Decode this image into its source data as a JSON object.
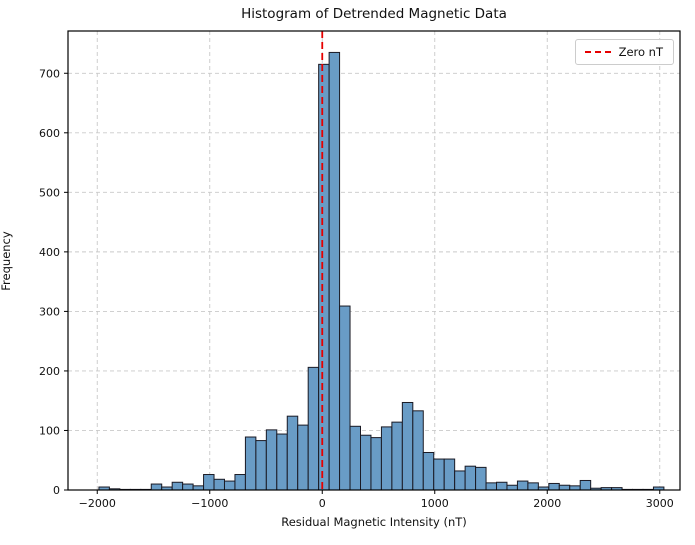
{
  "figure": {
    "title": "Histogram of Detrended Magnetic Data",
    "xlabel": "Residual Magnetic Intensity (nT)",
    "ylabel": "Frequency"
  },
  "legend": {
    "label": "Zero nT"
  },
  "colors": {
    "bar_fill": "#699cc6",
    "bar_edge": "#1a1a24",
    "grid": "#c9c9c9",
    "spine": "#000000",
    "zero_line": "#e60000",
    "text": "#111111",
    "background": "#ffffff"
  },
  "chart_data": {
    "type": "bar",
    "subtype": "histogram",
    "title": "Histogram of Detrended Magnetic Data",
    "xlabel": "Residual Magnetic Intensity (nT)",
    "ylabel": "Frequency",
    "bin_start": -1985,
    "bin_width": 93,
    "counts": [
      5,
      2,
      1,
      1,
      1,
      10,
      5,
      13,
      10,
      7,
      26,
      18,
      15,
      26,
      89,
      83,
      101,
      94,
      124,
      109,
      206,
      715,
      735,
      309,
      107,
      92,
      88,
      106,
      114,
      147,
      133,
      63,
      52,
      52,
      32,
      40,
      38,
      12,
      13,
      8,
      15,
      12,
      5,
      11,
      8,
      7,
      16,
      3,
      4,
      4,
      1,
      1,
      1,
      5
    ],
    "xticks": [
      -2000,
      -1000,
      0,
      1000,
      2000,
      3000
    ],
    "xtick_labels": [
      "−2000",
      "−1000",
      "0",
      "1000",
      "2000",
      "3000"
    ],
    "yticks": [
      0,
      100,
      200,
      300,
      400,
      500,
      600,
      700
    ],
    "ytick_labels": [
      "0",
      "100",
      "200",
      "300",
      "400",
      "500",
      "600",
      "700"
    ],
    "xlim": [
      -2260,
      3180
    ],
    "ylim": [
      0,
      771
    ],
    "grid": true,
    "grid_style": "dashed",
    "legend_position": "upper right",
    "zero_line": {
      "x": 0,
      "style": "dashed",
      "color": "#e60000",
      "label": "Zero nT"
    }
  }
}
